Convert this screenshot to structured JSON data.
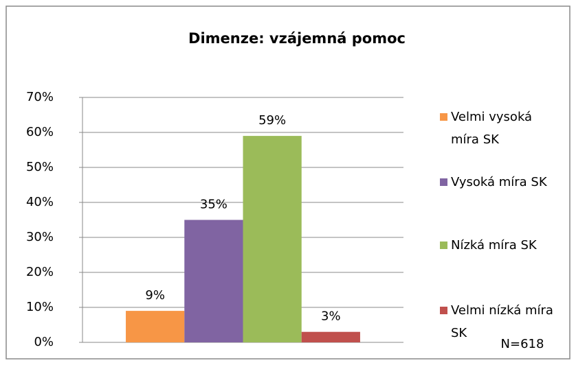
{
  "chart_data": {
    "type": "bar",
    "title": "Dimenze: vzájemná pomoc",
    "categories": [
      null
    ],
    "series": [
      {
        "name": "Velmi vysoká míra SK",
        "color": "#f79646",
        "values": [
          9
        ],
        "value_labels": [
          "9%"
        ]
      },
      {
        "name": "Vysoká míra SK",
        "color": "#8064a2",
        "values": [
          35
        ],
        "value_labels": [
          "35%"
        ]
      },
      {
        "name": "Nízká míra SK",
        "color": "#9bbb59",
        "values": [
          59
        ],
        "value_labels": [
          "59%"
        ]
      },
      {
        "name": "Velmi nízká míra SK",
        "color": "#c0504d",
        "values": [
          3
        ],
        "value_labels": [
          "3%"
        ]
      }
    ],
    "ylim": [
      0,
      70
    ],
    "yticks": [
      {
        "value": 0,
        "label": "0%"
      },
      {
        "value": 10,
        "label": "10%"
      },
      {
        "value": 20,
        "label": "20%"
      },
      {
        "value": 30,
        "label": "30%"
      },
      {
        "value": 40,
        "label": "40%"
      },
      {
        "value": 50,
        "label": "50%"
      },
      {
        "value": 60,
        "label": "60%"
      },
      {
        "value": 70,
        "label": "70%"
      }
    ],
    "grid": true,
    "legend": "right",
    "annotations": [
      "N=618"
    ]
  }
}
